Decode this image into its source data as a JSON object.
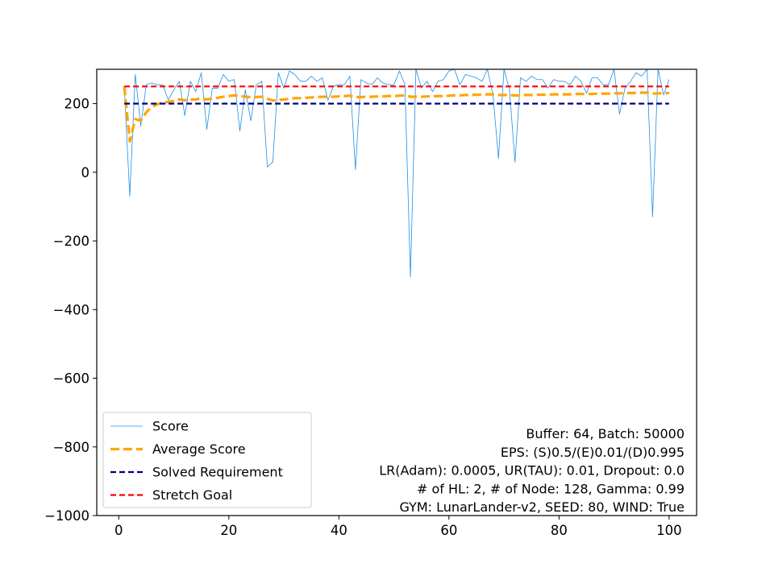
{
  "chart_data": {
    "type": "line",
    "title": "",
    "xlabel": "",
    "ylabel": "",
    "xlim": [
      -4,
      105
    ],
    "ylim": [
      -1000,
      300
    ],
    "xticks": [
      0,
      20,
      40,
      60,
      80,
      100
    ],
    "yticks": [
      -1000,
      -800,
      -600,
      -400,
      -200,
      0,
      200
    ],
    "xtick_labels": [
      "0",
      "20",
      "40",
      "60",
      "80",
      "100"
    ],
    "ytick_labels": [
      "−1000",
      "−800",
      "−600",
      "−400",
      "−200",
      "0",
      "200"
    ],
    "grid": false,
    "legend_position": "lower-left",
    "series": [
      {
        "name": "Score",
        "color": "#1f8fe6",
        "style": "solid-thin",
        "x": [
          1,
          2,
          3,
          4,
          5,
          6,
          7,
          8,
          9,
          10,
          11,
          12,
          13,
          14,
          15,
          16,
          17,
          18,
          19,
          20,
          21,
          22,
          23,
          24,
          25,
          26,
          27,
          28,
          29,
          30,
          31,
          32,
          33,
          34,
          35,
          36,
          37,
          38,
          39,
          40,
          41,
          42,
          43,
          44,
          45,
          46,
          47,
          48,
          49,
          50,
          51,
          52,
          53,
          54,
          55,
          56,
          57,
          58,
          59,
          60,
          61,
          62,
          63,
          64,
          65,
          66,
          67,
          68,
          69,
          70,
          71,
          72,
          73,
          74,
          75,
          76,
          77,
          78,
          79,
          80,
          81,
          82,
          83,
          84,
          85,
          86,
          87,
          88,
          89,
          90,
          91,
          92,
          93,
          94,
          95,
          96,
          97,
          98,
          99,
          100
        ],
        "values": [
          250,
          -70,
          285,
          135,
          255,
          260,
          255,
          255,
          210,
          240,
          265,
          165,
          265,
          235,
          290,
          125,
          245,
          245,
          285,
          265,
          270,
          120,
          240,
          150,
          255,
          265,
          15,
          30,
          290,
          245,
          295,
          285,
          265,
          265,
          280,
          265,
          275,
          210,
          250,
          255,
          255,
          280,
          8,
          270,
          260,
          255,
          275,
          260,
          255,
          255,
          295,
          255,
          -305,
          300,
          245,
          265,
          235,
          265,
          270,
          295,
          300,
          255,
          285,
          280,
          275,
          265,
          300,
          225,
          40,
          300,
          240,
          30,
          275,
          265,
          280,
          270,
          270,
          245,
          270,
          265,
          265,
          255,
          280,
          265,
          230,
          275,
          275,
          255,
          255,
          300,
          170,
          245,
          265,
          290,
          280,
          300,
          -130,
          300,
          225,
          270
        ]
      },
      {
        "name": "Average Score",
        "color": "#ffa500",
        "style": "dashed-thick",
        "x": [
          1,
          2,
          3,
          4,
          5,
          6,
          7,
          8,
          9,
          10,
          11,
          12,
          13,
          14,
          15,
          16,
          17,
          18,
          19,
          20,
          21,
          22,
          23,
          24,
          25,
          26,
          27,
          28,
          29,
          30,
          31,
          32,
          33,
          34,
          35,
          36,
          37,
          38,
          39,
          40,
          41,
          42,
          43,
          44,
          45,
          46,
          47,
          48,
          49,
          50,
          51,
          52,
          53,
          54,
          55,
          56,
          57,
          58,
          59,
          60,
          61,
          62,
          63,
          64,
          65,
          66,
          67,
          68,
          69,
          70,
          71,
          72,
          73,
          74,
          75,
          76,
          77,
          78,
          79,
          80,
          81,
          82,
          83,
          84,
          85,
          86,
          87,
          88,
          89,
          90,
          91,
          92,
          93,
          94,
          95,
          96,
          97,
          98,
          99,
          100
        ],
        "values": [
          250,
          90,
          155,
          150,
          175,
          190,
          198,
          203,
          205,
          208,
          212,
          210,
          212,
          212,
          216,
          212,
          215,
          217,
          220,
          222,
          224,
          222,
          220,
          219,
          219,
          220,
          214,
          209,
          211,
          212,
          214,
          216,
          216,
          217,
          218,
          219,
          220,
          220,
          220,
          221,
          222,
          223,
          219,
          219,
          220,
          220,
          221,
          221,
          222,
          222,
          223,
          224,
          220,
          220,
          220,
          221,
          221,
          222,
          222,
          223,
          224,
          224,
          225,
          225,
          226,
          226,
          227,
          227,
          225,
          225,
          225,
          224,
          224,
          225,
          225,
          226,
          226,
          226,
          227,
          227,
          227,
          227,
          228,
          228,
          228,
          228,
          229,
          229,
          229,
          230,
          230,
          230,
          231,
          231,
          232,
          232,
          229,
          230,
          230,
          231
        ]
      },
      {
        "name": "Solved Requirement",
        "color": "#000080",
        "style": "dashed",
        "x": [
          1,
          100
        ],
        "values": [
          200,
          200
        ]
      },
      {
        "name": "Stretch Goal",
        "color": "#ff0000",
        "style": "dashed",
        "x": [
          1,
          100
        ],
        "values": [
          250,
          250
        ]
      }
    ],
    "annotation_lines": [
      "Buffer: 64, Batch: 50000",
      "EPS: (S)0.5/(E)0.01/(D)0.995",
      "LR(Adam): 0.0005, UR(TAU): 0.01, Dropout: 0.0",
      "# of HL: 2, # of Node: 128, Gamma: 0.99",
      "GYM: LunarLander-v2, SEED: 80, WIND: True"
    ]
  }
}
